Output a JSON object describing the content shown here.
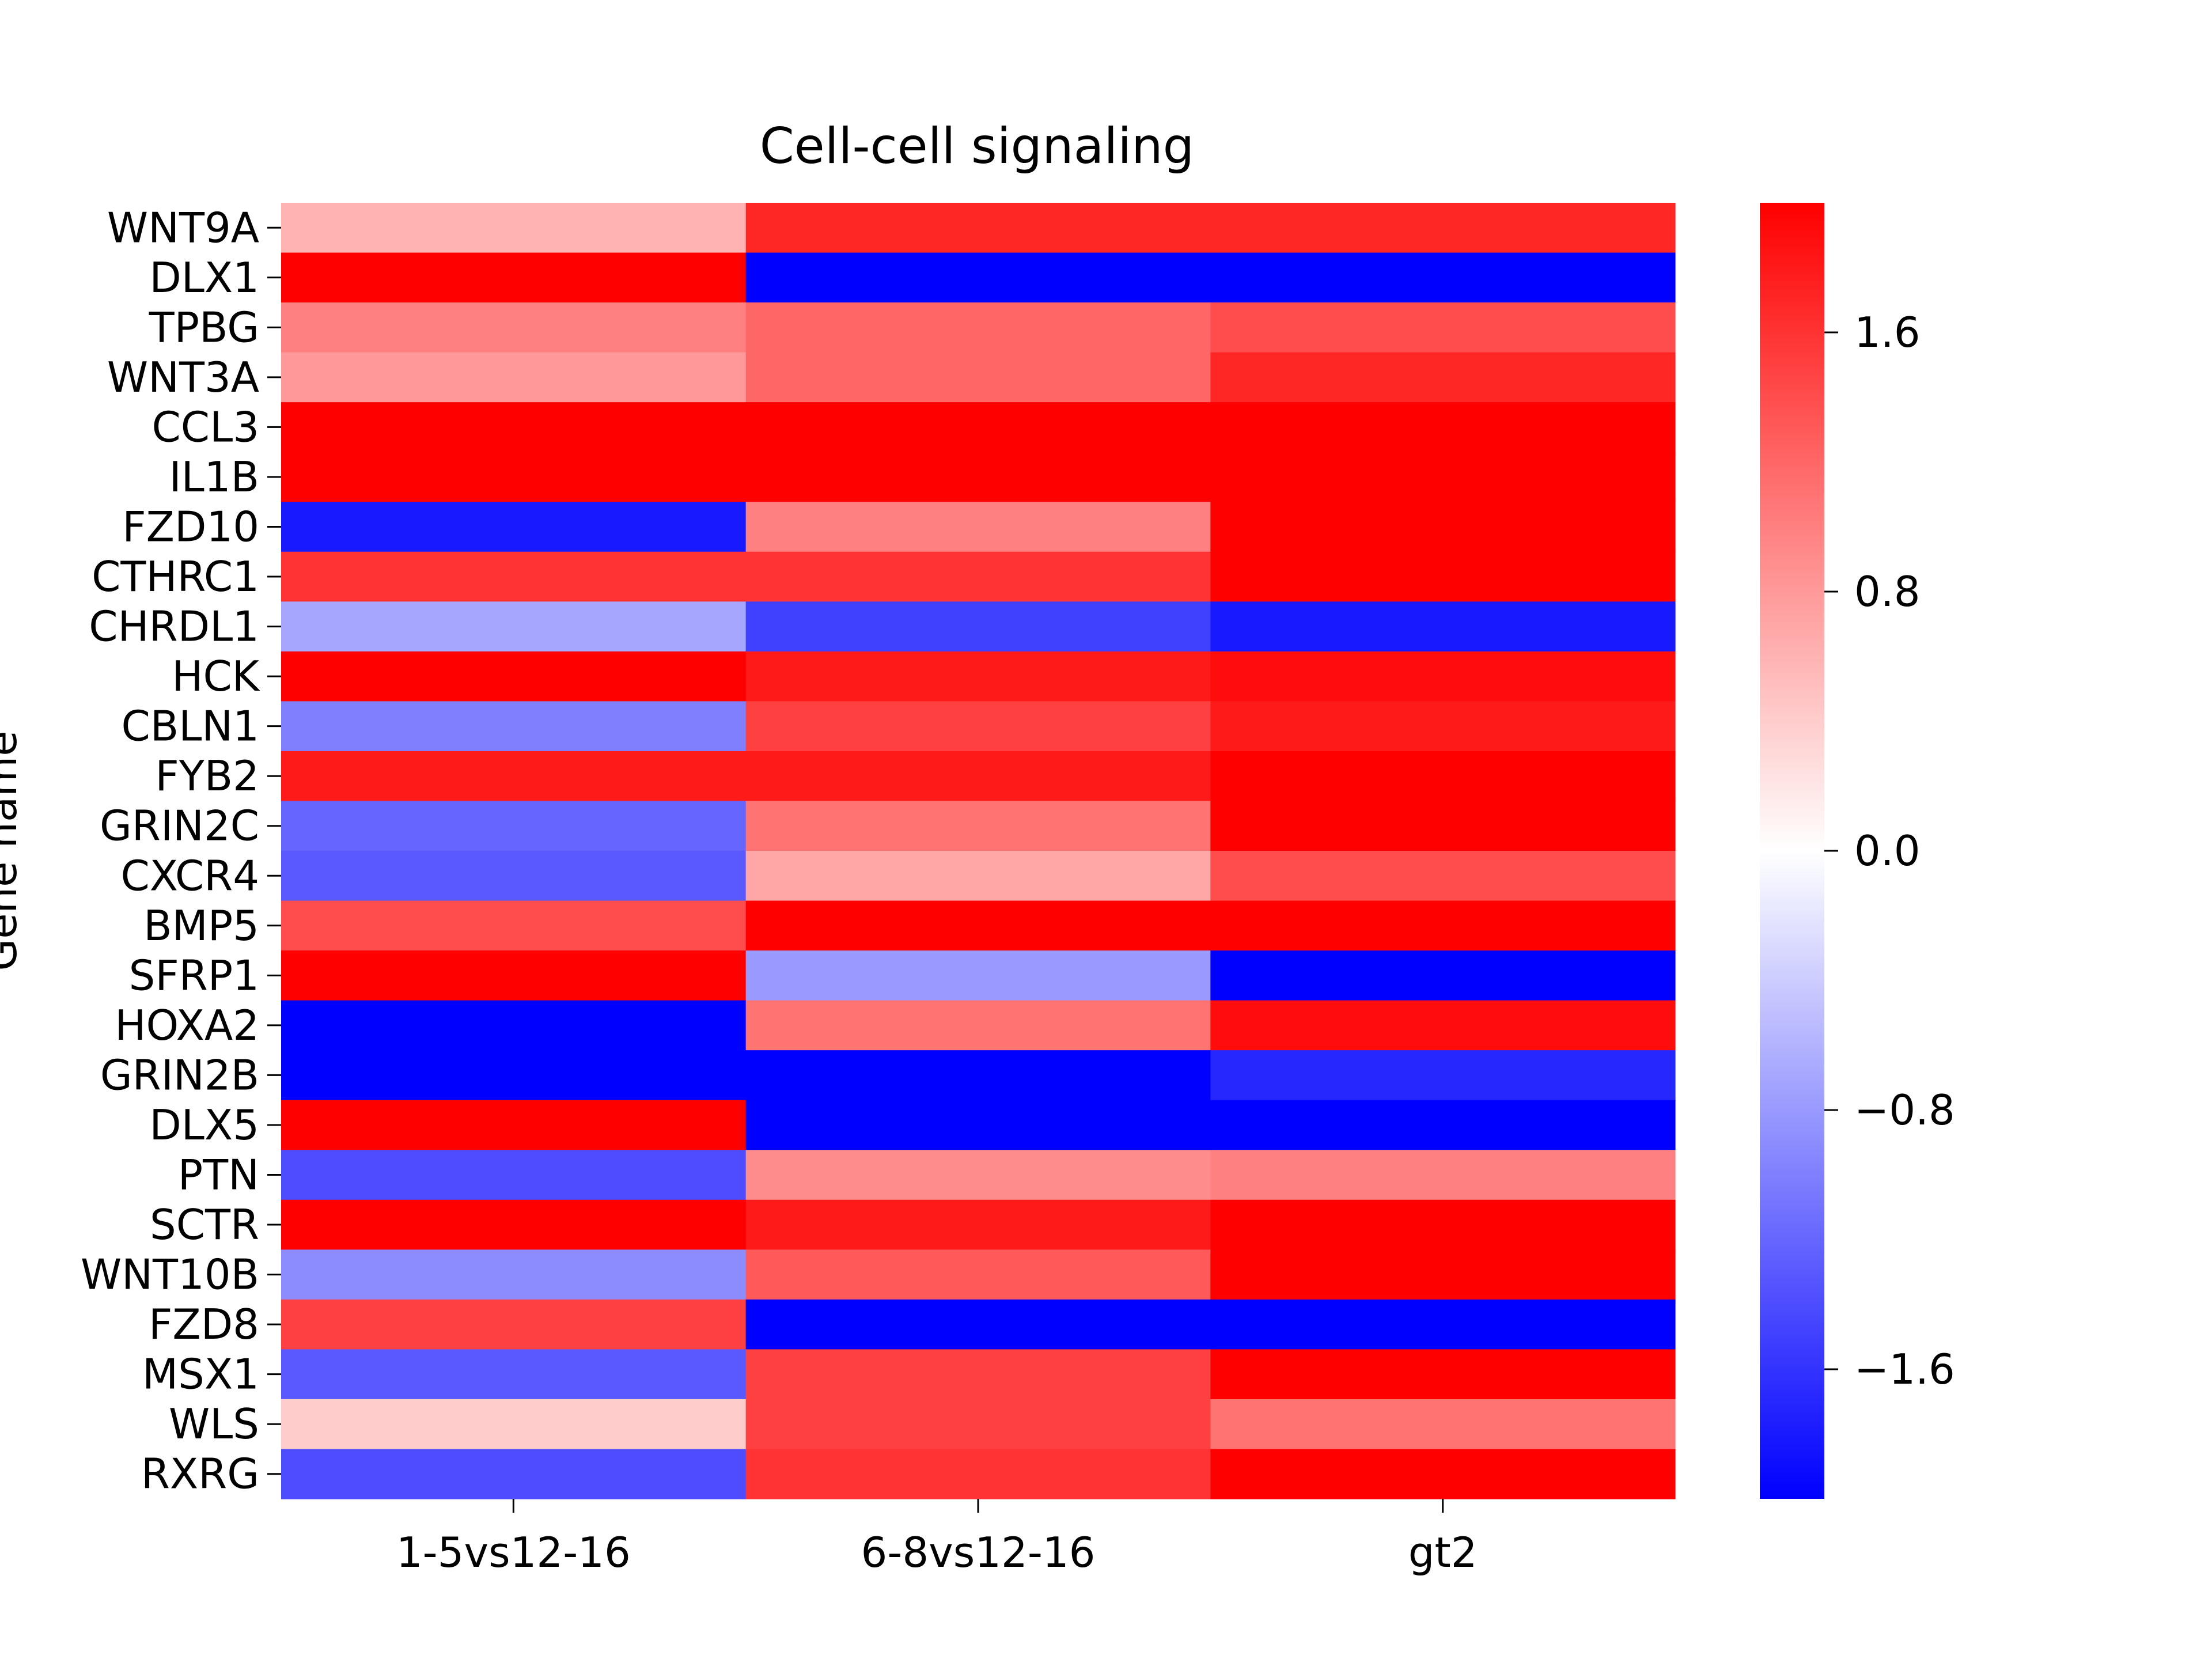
{
  "chart_data": {
    "type": "heatmap",
    "title": "Cell-cell signaling",
    "xlabel": "",
    "ylabel": "Gene name",
    "columns": [
      "1-5vs12-16",
      "6-8vs12-16",
      "gt2"
    ],
    "rows": [
      "WNT9A",
      "DLX1",
      "TPBG",
      "WNT3A",
      "CCL3",
      "IL1B",
      "FZD10",
      "CTHRC1",
      "CHRDL1",
      "HCK",
      "CBLN1",
      "FYB2",
      "GRIN2C",
      "CXCR4",
      "BMP5",
      "SFRP1",
      "HOXA2",
      "GRIN2B",
      "DLX5",
      "PTN",
      "SCTR",
      "WNT10B",
      "FZD8",
      "MSX1",
      "WLS",
      "RXRG"
    ],
    "values": [
      [
        0.6,
        1.7,
        1.7
      ],
      [
        2.0,
        -2.0,
        -2.0
      ],
      [
        1.0,
        1.2,
        1.4
      ],
      [
        0.8,
        1.2,
        1.7
      ],
      [
        2.0,
        2.0,
        2.0
      ],
      [
        2.0,
        2.0,
        2.0
      ],
      [
        -1.8,
        1.0,
        2.0
      ],
      [
        1.6,
        1.6,
        2.0
      ],
      [
        -0.7,
        -1.5,
        -1.8
      ],
      [
        2.0,
        1.8,
        1.9
      ],
      [
        -1.0,
        1.5,
        1.8
      ],
      [
        1.8,
        1.8,
        2.0
      ],
      [
        -1.2,
        1.1,
        2.0
      ],
      [
        -1.3,
        0.7,
        1.4
      ],
      [
        1.4,
        2.0,
        2.0
      ],
      [
        2.0,
        -0.8,
        -2.0
      ],
      [
        -2.0,
        1.1,
        1.9
      ],
      [
        -2.0,
        -2.0,
        -1.7
      ],
      [
        2.0,
        -2.0,
        -2.0
      ],
      [
        -1.4,
        0.9,
        1.0
      ],
      [
        2.0,
        1.8,
        2.0
      ],
      [
        -0.9,
        1.3,
        2.0
      ],
      [
        1.5,
        -2.0,
        -2.0
      ],
      [
        -1.3,
        1.5,
        2.0
      ],
      [
        0.4,
        1.5,
        1.1
      ],
      [
        -1.4,
        1.6,
        2.0
      ]
    ],
    "colorbar": {
      "vmin": -2.0,
      "vmax": 2.0,
      "ticks": [
        1.6,
        0.8,
        0.0,
        -0.8,
        -1.6
      ],
      "tick_labels": [
        "1.6",
        "0.8",
        "0.0",
        "−0.8",
        "−1.6"
      ],
      "colors": {
        "low": "#0000ff",
        "mid": "#ffffff",
        "high": "#ff0000"
      }
    }
  }
}
